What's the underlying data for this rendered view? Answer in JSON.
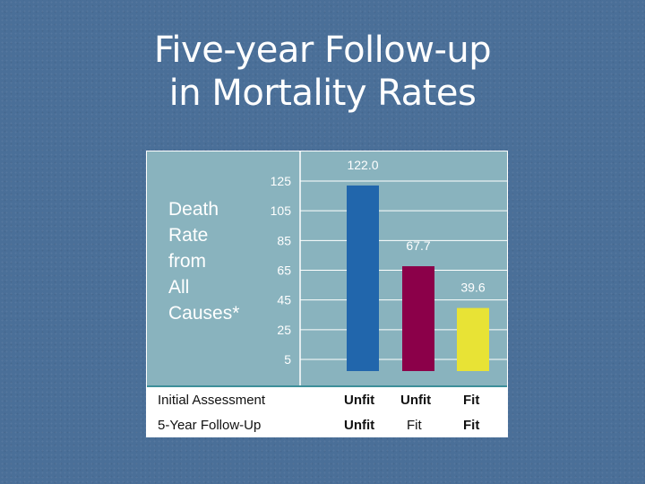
{
  "slide": {
    "title_line1": "Five-year Follow-up",
    "title_line2": "in Mortality Rates"
  },
  "chart_data": {
    "type": "bar",
    "ylabel_lines": [
      "Death",
      "Rate",
      "from",
      "All",
      "Causes*"
    ],
    "yticks": [
      125,
      105,
      85,
      65,
      45,
      25,
      5
    ],
    "ylim": [
      5,
      125
    ],
    "grid": true,
    "categories": [
      "Unfit / Unfit",
      "Unfit / Fit",
      "Fit / Fit"
    ],
    "values": [
      122.0,
      67.7,
      39.6
    ],
    "value_labels": [
      "122.0",
      "67.7",
      "39.6"
    ],
    "colors": [
      "#2166ac",
      "#8b0049",
      "#e8e335"
    ]
  },
  "table": {
    "rows": [
      {
        "label": "Initial Assessment",
        "cells": [
          "Unfit",
          "Unfit",
          "Fit"
        ],
        "bold": true
      },
      {
        "label": "5-Year Follow-Up",
        "cells": [
          "Unfit",
          "Fit",
          "Fit"
        ],
        "bold": false
      }
    ]
  }
}
